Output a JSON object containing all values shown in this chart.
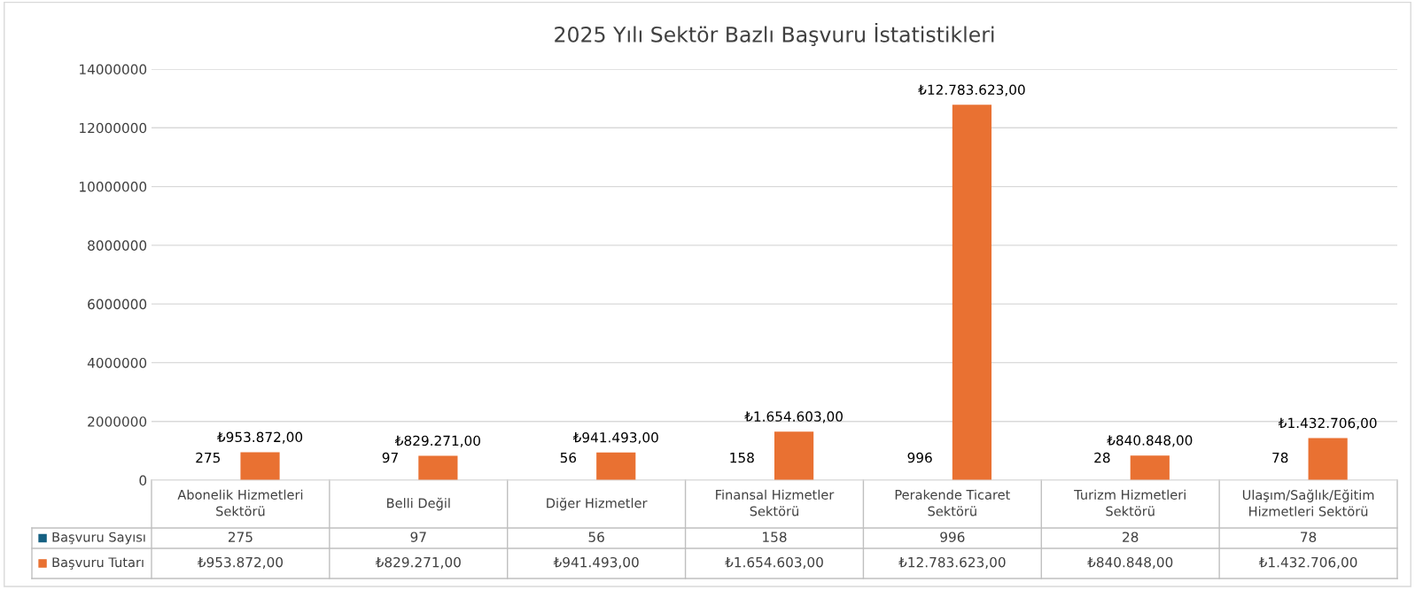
{
  "chart_data": {
    "type": "bar",
    "title": "2025 Yılı Sektör Bazlı Başvuru İstatistikleri",
    "categories": [
      "Abonelik Hizmetleri Sektörü",
      "Belli Değil",
      "Diğer Hizmetler",
      "Finansal Hizmetler Sektörü",
      "Perakende Ticaret Sektörü",
      "Turizm Hizmetleri Sektörü",
      "Ulaşım/Sağlık/Eğitim Hizmetleri Sektörü"
    ],
    "series": [
      {
        "name": "Başvuru Sayısı",
        "color": "#156082",
        "values": [
          275,
          97,
          56,
          158,
          996,
          28,
          78
        ],
        "value_labels": [
          "275",
          "97",
          "56",
          "158",
          "996",
          "28",
          "78"
        ]
      },
      {
        "name": "Başvuru Tutarı",
        "color": "#e97132",
        "values": [
          953872,
          829271,
          941493,
          1654603,
          12783623,
          840848,
          1432706
        ],
        "value_labels": [
          "₺953.872,00",
          "₺829.271,00",
          "₺941.493,00",
          "₺1.654.603,00",
          "₺12.783.623,00",
          "₺840.848,00",
          "₺1.432.706,00"
        ]
      }
    ],
    "ylim": [
      0,
      14000000
    ],
    "yticks": [
      0,
      2000000,
      4000000,
      6000000,
      8000000,
      10000000,
      12000000,
      14000000
    ],
    "grid": "y",
    "legend": "bottom"
  }
}
